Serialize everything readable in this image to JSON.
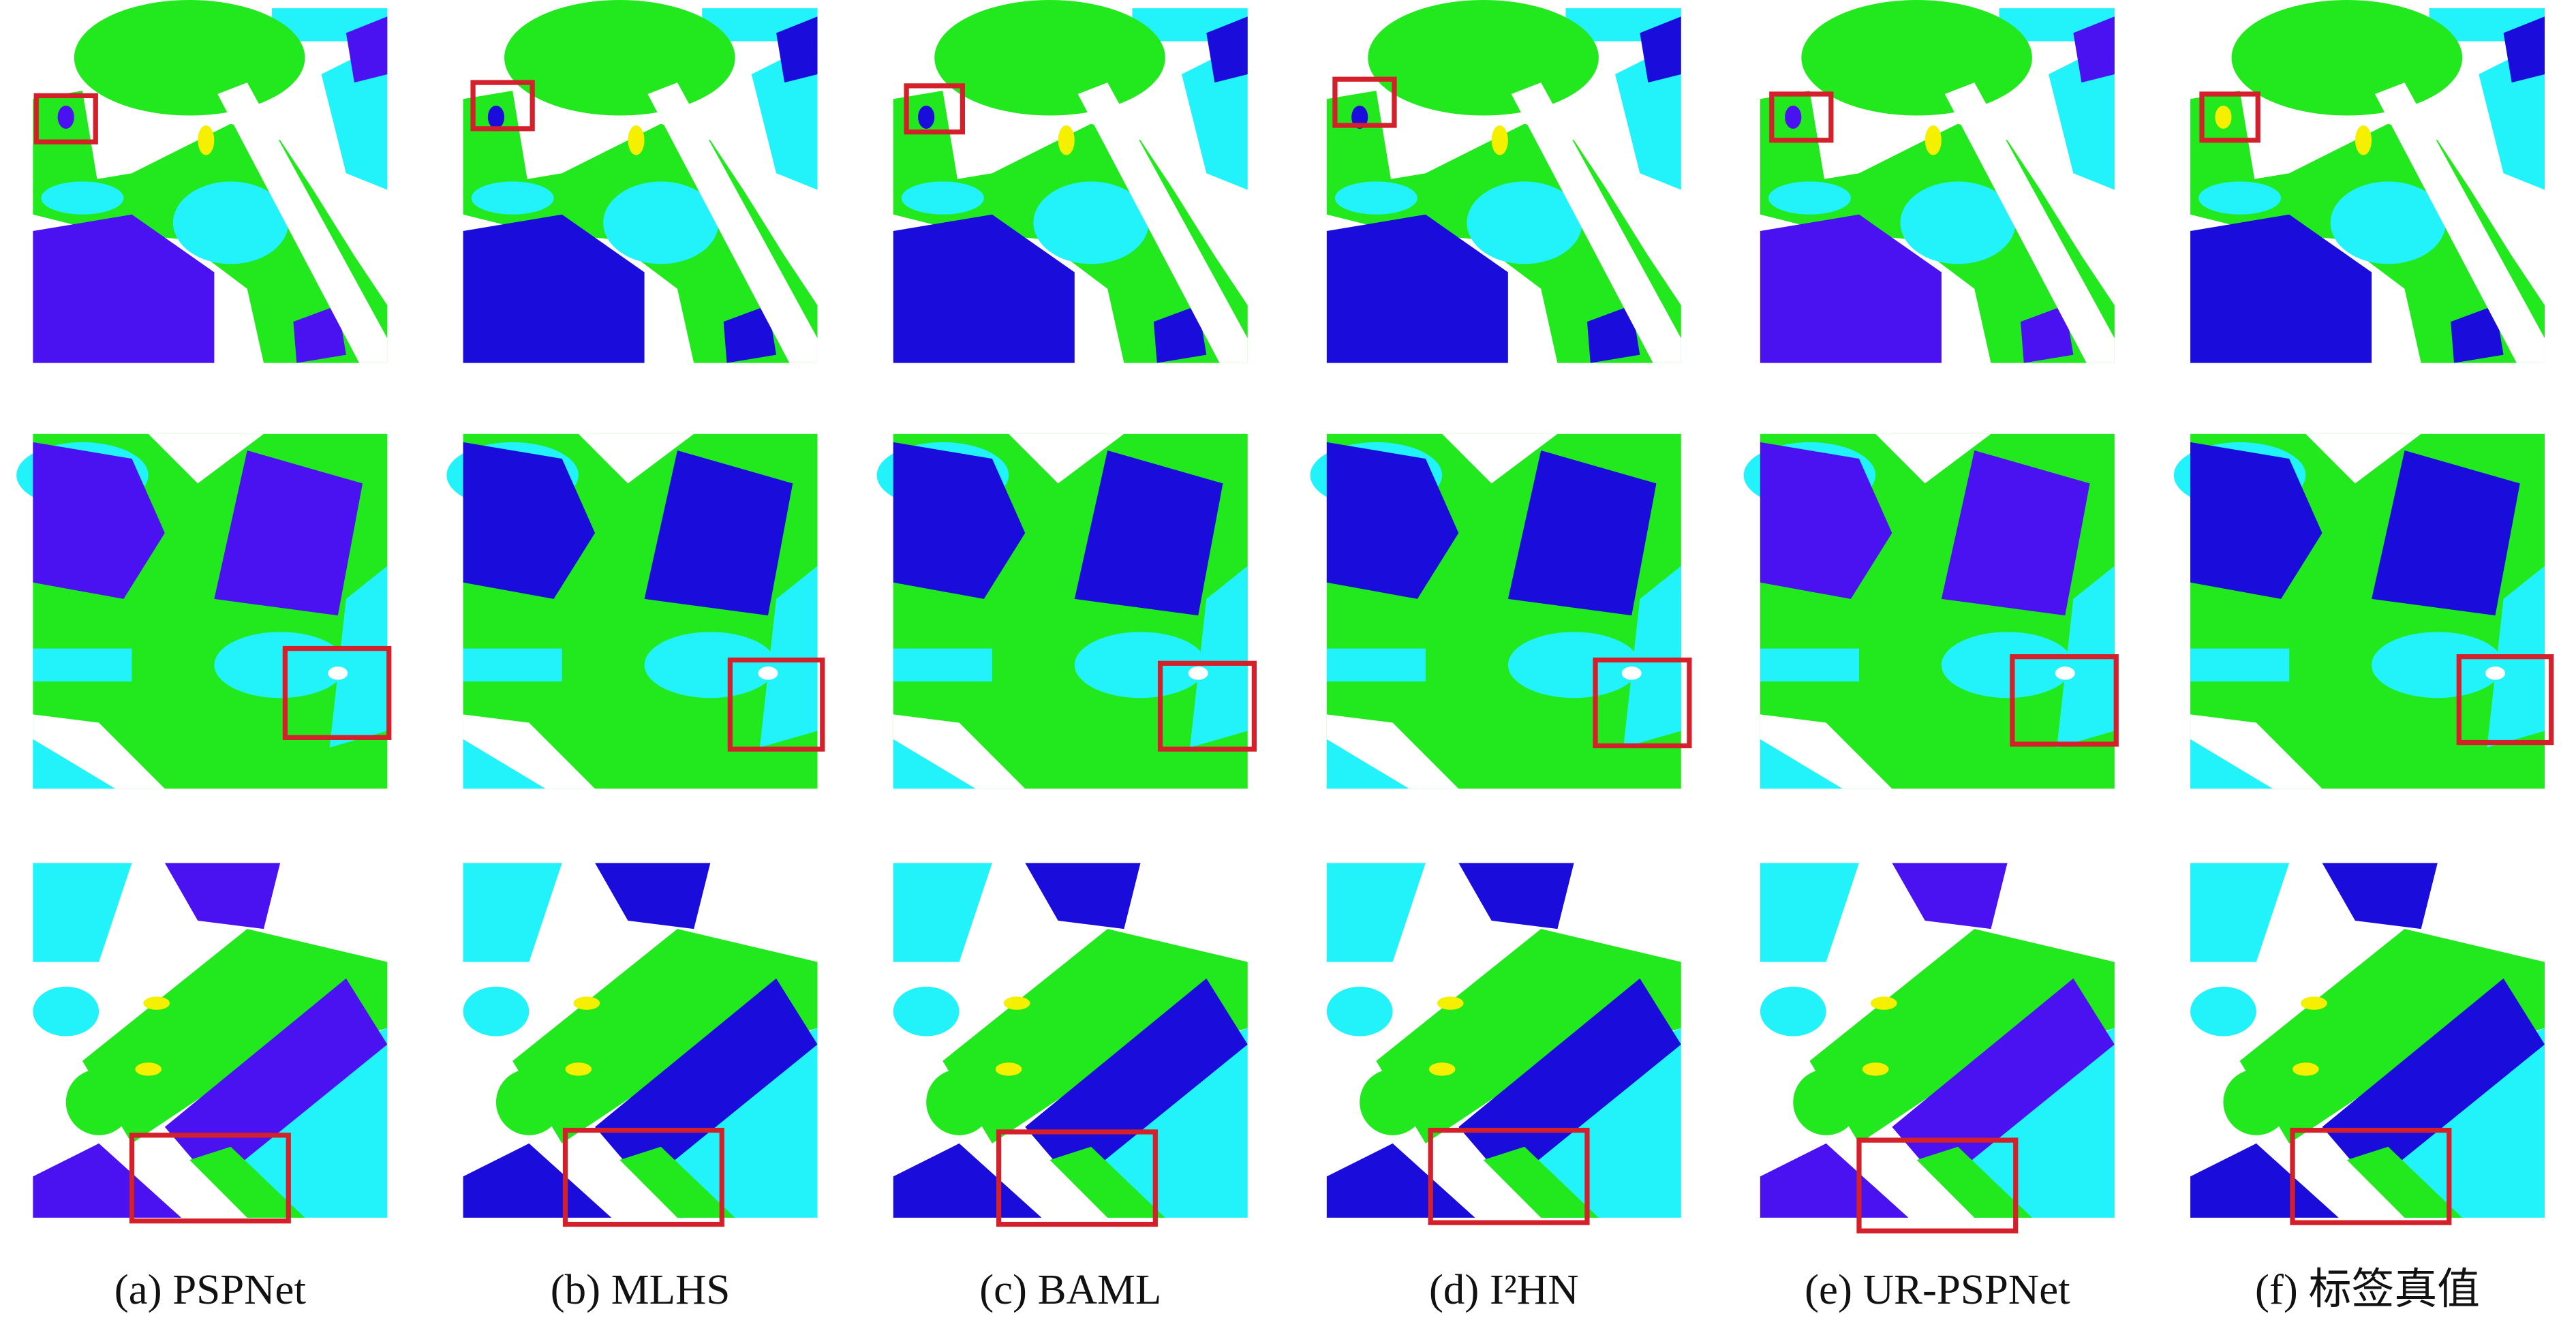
{
  "captions": [
    "(a) PSPNet",
    "(b) MLHS",
    "(c) BAML",
    "(d) I²HN",
    "(e) UR-PSPNet",
    "(f) 标签真值"
  ]
}
